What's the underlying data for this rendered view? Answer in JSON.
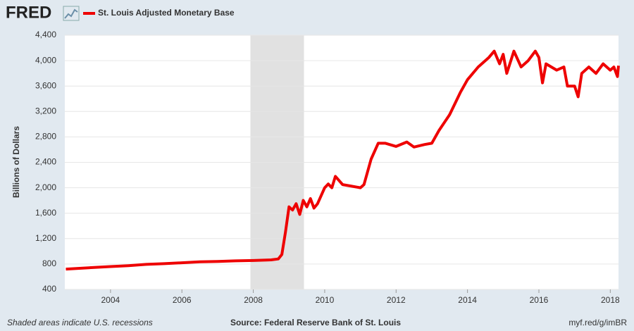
{
  "chart_data": {
    "type": "line",
    "logo": "FRED",
    "ylabel": "Billions of Dollars",
    "footer_left": "Shaded areas indicate U.S. recessions",
    "source": "Source: Federal Reserve Bank of St. Louis",
    "link": "myf.red/g/imBR",
    "recession_shading": [
      [
        2007.92,
        2009.42
      ]
    ],
    "recession_color": "#e1e1e1",
    "x": [
      2002.75,
      2003.5,
      2004,
      2004.5,
      2005,
      2005.5,
      2006,
      2006.5,
      2007,
      2007.5,
      2008,
      2008.5,
      2008.7,
      2008.8,
      2008.9,
      2009.0,
      2009.1,
      2009.2,
      2009.3,
      2009.4,
      2009.5,
      2009.6,
      2009.7,
      2009.8,
      2010.0,
      2010.1,
      2010.2,
      2010.3,
      2010.5,
      2010.7,
      2011.0,
      2011.1,
      2011.3,
      2011.5,
      2011.7,
      2012.0,
      2012.3,
      2012.5,
      2012.8,
      2013.0,
      2013.2,
      2013.5,
      2013.8,
      2014.0,
      2014.3,
      2014.6,
      2014.75,
      2014.9,
      2015.0,
      2015.1,
      2015.3,
      2015.5,
      2015.7,
      2015.9,
      2016.0,
      2016.1,
      2016.2,
      2016.5,
      2016.7,
      2016.8,
      2017.0,
      2017.1,
      2017.2,
      2017.4,
      2017.6,
      2017.8,
      2018.0,
      2018.1,
      2018.2,
      2018.23
    ],
    "series": [
      {
        "name": "St. Louis Adjusted Monetary Base",
        "color": "#ee0000",
        "values": [
          720,
          745,
          760,
          775,
          795,
          805,
          820,
          835,
          840,
          850,
          855,
          865,
          880,
          950,
          1300,
          1700,
          1650,
          1750,
          1580,
          1800,
          1700,
          1830,
          1680,
          1750,
          2000,
          2060,
          2000,
          2180,
          2050,
          2030,
          2000,
          2050,
          2450,
          2700,
          2700,
          2650,
          2720,
          2640,
          2680,
          2700,
          2900,
          3150,
          3500,
          3700,
          3900,
          4050,
          4150,
          3950,
          4100,
          3800,
          4150,
          3900,
          4000,
          4150,
          4050,
          3650,
          3950,
          3850,
          3900,
          3600,
          3600,
          3430,
          3800,
          3900,
          3800,
          3950,
          3850,
          3900,
          3750,
          3920
        ]
      }
    ],
    "xlim": [
      2002.72,
      2018.23
    ],
    "xticks": [
      2004,
      2006,
      2008,
      2010,
      2012,
      2014,
      2016,
      2018
    ],
    "ylim": [
      400,
      4400
    ],
    "yticks": [
      400,
      800,
      {
        "value": 1200,
        "label": "1,200"
      },
      {
        "value": 1600,
        "label": "1,600"
      },
      {
        "value": 2000,
        "label": "2,000"
      },
      {
        "value": 2400,
        "label": "2,400"
      },
      {
        "value": 2800,
        "label": "2,800"
      },
      {
        "value": 3200,
        "label": "3,200"
      },
      {
        "value": 3600,
        "label": "3,600"
      },
      {
        "value": 4000,
        "label": "4,000"
      },
      {
        "value": 4400,
        "label": "4,400"
      }
    ],
    "grid": true
  }
}
